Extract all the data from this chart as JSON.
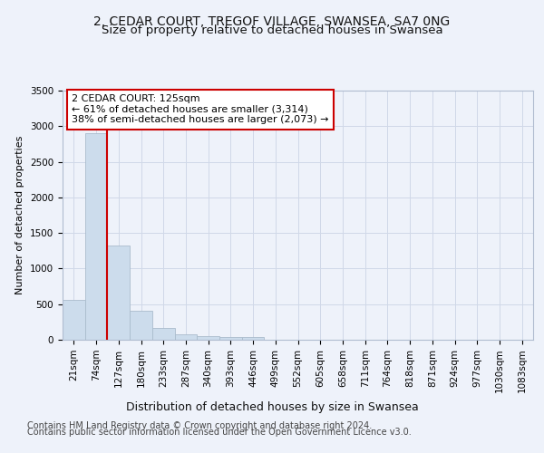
{
  "title_line1": "2, CEDAR COURT, TREGOF VILLAGE, SWANSEA, SA7 0NG",
  "title_line2": "Size of property relative to detached houses in Swansea",
  "xlabel": "Distribution of detached houses by size in Swansea",
  "ylabel": "Number of detached properties",
  "footer_line1": "Contains HM Land Registry data © Crown copyright and database right 2024.",
  "footer_line2": "Contains public sector information licensed under the Open Government Licence v3.0.",
  "bin_labels": [
    "21sqm",
    "74sqm",
    "127sqm",
    "180sqm",
    "233sqm",
    "287sqm",
    "340sqm",
    "393sqm",
    "446sqm",
    "499sqm",
    "552sqm",
    "605sqm",
    "658sqm",
    "711sqm",
    "764sqm",
    "818sqm",
    "871sqm",
    "924sqm",
    "977sqm",
    "1030sqm",
    "1083sqm"
  ],
  "bar_values": [
    560,
    2900,
    1330,
    410,
    160,
    80,
    55,
    42,
    35,
    0,
    0,
    0,
    0,
    0,
    0,
    0,
    0,
    0,
    0,
    0,
    0
  ],
  "bar_color": "#ccdcec",
  "bar_edge_color": "#aabccc",
  "property_line_x": 1.5,
  "property_line_color": "#cc0000",
  "annotation_text": "2 CEDAR COURT: 125sqm\n← 61% of detached houses are smaller (3,314)\n38% of semi-detached houses are larger (2,073) →",
  "annotation_box_color": "white",
  "annotation_border_color": "#cc0000",
  "ylim": [
    0,
    3500
  ],
  "yticks": [
    0,
    500,
    1000,
    1500,
    2000,
    2500,
    3000,
    3500
  ],
  "grid_color": "#d0d8e8",
  "background_color": "#eef2fa",
  "axes_background": "#eef2fa",
  "title1_fontsize": 10,
  "title2_fontsize": 9.5,
  "xlabel_fontsize": 9,
  "ylabel_fontsize": 8,
  "tick_fontsize": 7.5,
  "annotation_fontsize": 8,
  "footer_fontsize": 7
}
